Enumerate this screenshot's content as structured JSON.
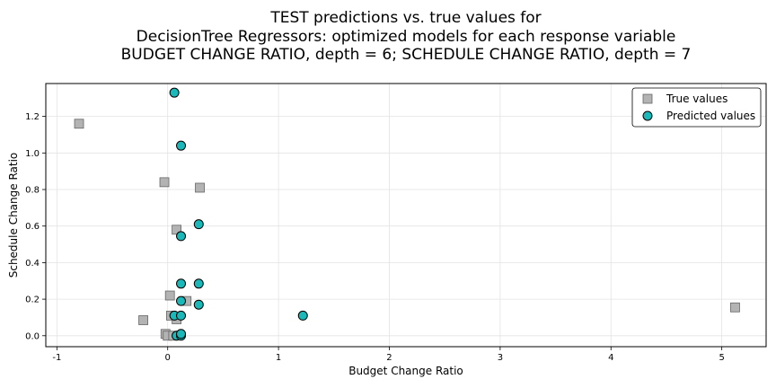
{
  "chart_data": {
    "type": "scatter",
    "title_lines": [
      "TEST predictions vs. true values for",
      "DecisionTree Regressors: optimized models for each response variable",
      "BUDGET CHANGE RATIO, depth = 6; SCHEDULE CHANGE RATIO, depth = 7"
    ],
    "xlabel": "Budget Change Ratio",
    "ylabel": "Schedule Change Ratio",
    "xlim": [
      -1.1,
      5.4
    ],
    "ylim": [
      -0.06,
      1.38
    ],
    "xticks": [
      -1,
      0,
      1,
      2,
      3,
      4,
      5
    ],
    "yticks": [
      0.0,
      0.2,
      0.4,
      0.6,
      0.8,
      1.0,
      1.2
    ],
    "ytick_labels": [
      "0.0",
      "0.2",
      "0.4",
      "0.6",
      "0.8",
      "1.0",
      "1.2"
    ],
    "grid": true,
    "legend_position": "top-right",
    "series": [
      {
        "name": "True values",
        "marker": "square",
        "color": "#b3b3b3",
        "edge": "#666666",
        "points": [
          [
            -0.8,
            1.16
          ],
          [
            -0.03,
            0.84
          ],
          [
            0.29,
            0.81
          ],
          [
            0.08,
            0.58
          ],
          [
            0.02,
            0.22
          ],
          [
            0.17,
            0.19
          ],
          [
            0.03,
            0.11
          ],
          [
            0.08,
            0.09
          ],
          [
            -0.22,
            0.085
          ],
          [
            -0.02,
            0.01
          ],
          [
            0.0,
            0.0
          ],
          [
            0.05,
            0.0
          ],
          [
            5.12,
            0.155
          ]
        ]
      },
      {
        "name": "Predicted values",
        "marker": "circle",
        "color": "#1ab8b8",
        "edge": "#000000",
        "points": [
          [
            0.06,
            1.33
          ],
          [
            0.12,
            1.04
          ],
          [
            0.28,
            0.61
          ],
          [
            0.12,
            0.545
          ],
          [
            0.12,
            0.285
          ],
          [
            0.28,
            0.285
          ],
          [
            0.12,
            0.19
          ],
          [
            0.28,
            0.17
          ],
          [
            0.06,
            0.11
          ],
          [
            0.12,
            0.11
          ],
          [
            1.22,
            0.11
          ],
          [
            0.08,
            0.0
          ],
          [
            0.12,
            0.0
          ],
          [
            0.12,
            0.01
          ]
        ]
      }
    ]
  }
}
